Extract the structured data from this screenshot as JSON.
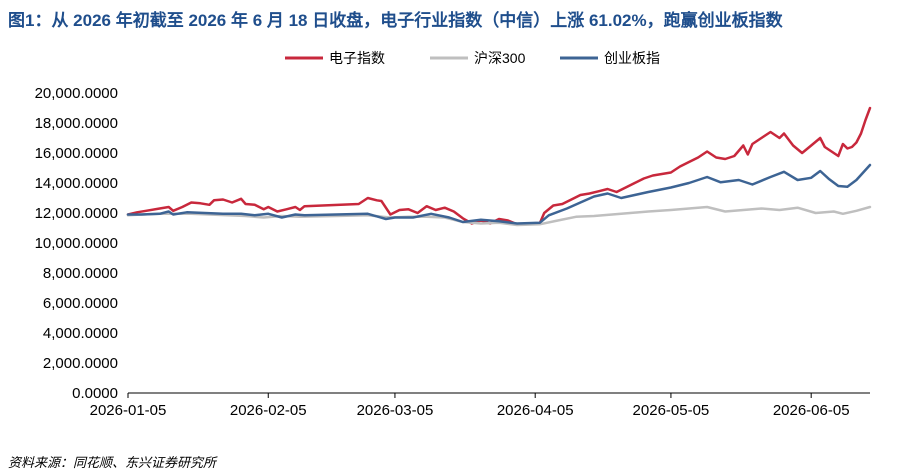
{
  "page": {
    "title": "图1：从 2026 年初截至 2026 年 6 月 18 日收盘，电子行业指数（中信）上涨 61.02%，跑赢创业板指数",
    "source": "资料来源：同花顺、东兴证券研究所"
  },
  "chart_data": {
    "type": "line",
    "title": "图1：从 2026 年初截至 2026 年 6 月 18 日收盘，电子行业指数（中信）上涨 61.02%，跑赢创业板指数",
    "xlabel": "",
    "ylabel": "",
    "ylim": [
      0,
      20000
    ],
    "y_ticks": [
      "0.0000",
      "2,000.0000",
      "4,000.0000",
      "6,000.0000",
      "8,000.0000",
      "10,000.0000",
      "12,000.0000",
      "14,000.0000",
      "16,000.0000",
      "18,000.0000",
      "20,000.0000"
    ],
    "x_range": [
      "2026-01-05",
      "2026-06-18"
    ],
    "x_ticks": [
      "2026-01-05",
      "2026-02-05",
      "2026-03-05",
      "2026-04-05",
      "2026-05-05",
      "2026-06-05"
    ],
    "legend_position": "top-center",
    "grid": false,
    "series": [
      {
        "name": "电子指数",
        "color": "#c8283c",
        "points": [
          [
            "2026-01-05",
            11900
          ],
          [
            "2026-01-07",
            12050
          ],
          [
            "2026-01-09",
            12150
          ],
          [
            "2026-01-12",
            12300
          ],
          [
            "2026-01-14",
            12400
          ],
          [
            "2026-01-15",
            12150
          ],
          [
            "2026-01-17",
            12400
          ],
          [
            "2026-01-19",
            12700
          ],
          [
            "2026-01-21",
            12650
          ],
          [
            "2026-01-23",
            12550
          ],
          [
            "2026-01-24",
            12850
          ],
          [
            "2026-01-26",
            12900
          ],
          [
            "2026-01-28",
            12700
          ],
          [
            "2026-01-30",
            12950
          ],
          [
            "2026-01-31",
            12600
          ],
          [
            "2026-02-02",
            12550
          ],
          [
            "2026-02-04",
            12250
          ],
          [
            "2026-02-05",
            12400
          ],
          [
            "2026-02-07",
            12100
          ],
          [
            "2026-02-09",
            12250
          ],
          [
            "2026-02-11",
            12400
          ],
          [
            "2026-02-12",
            12200
          ],
          [
            "2026-02-13",
            12450
          ],
          [
            "2026-02-25",
            12600
          ],
          [
            "2026-02-27",
            13000
          ],
          [
            "2026-03-01",
            12850
          ],
          [
            "2026-03-02",
            12800
          ],
          [
            "2026-03-04",
            11900
          ],
          [
            "2026-03-06",
            12200
          ],
          [
            "2026-03-08",
            12250
          ],
          [
            "2026-03-10",
            12000
          ],
          [
            "2026-03-12",
            12450
          ],
          [
            "2026-03-14",
            12200
          ],
          [
            "2026-03-16",
            12350
          ],
          [
            "2026-03-18",
            12100
          ],
          [
            "2026-03-20",
            11650
          ],
          [
            "2026-03-22",
            11300
          ],
          [
            "2026-03-24",
            11500
          ],
          [
            "2026-03-26",
            11300
          ],
          [
            "2026-03-28",
            11600
          ],
          [
            "2026-03-30",
            11500
          ],
          [
            "2026-04-01",
            11250
          ],
          [
            "2026-04-03",
            11300
          ],
          [
            "2026-04-06",
            11300
          ],
          [
            "2026-04-07",
            12000
          ],
          [
            "2026-04-09",
            12500
          ],
          [
            "2026-04-11",
            12600
          ],
          [
            "2026-04-13",
            12900
          ],
          [
            "2026-04-15",
            13200
          ],
          [
            "2026-04-17",
            13300
          ],
          [
            "2026-04-19",
            13450
          ],
          [
            "2026-04-21",
            13600
          ],
          [
            "2026-04-23",
            13400
          ],
          [
            "2026-04-25",
            13700
          ],
          [
            "2026-04-27",
            14000
          ],
          [
            "2026-04-29",
            14300
          ],
          [
            "2026-05-01",
            14500
          ],
          [
            "2026-05-05",
            14700
          ],
          [
            "2026-05-07",
            15100
          ],
          [
            "2026-05-09",
            15400
          ],
          [
            "2026-05-11",
            15700
          ],
          [
            "2026-05-13",
            16100
          ],
          [
            "2026-05-15",
            15700
          ],
          [
            "2026-05-17",
            15600
          ],
          [
            "2026-05-19",
            15800
          ],
          [
            "2026-05-21",
            16500
          ],
          [
            "2026-05-22",
            15900
          ],
          [
            "2026-05-23",
            16600
          ],
          [
            "2026-05-25",
            17000
          ],
          [
            "2026-05-27",
            17400
          ],
          [
            "2026-05-29",
            17000
          ],
          [
            "2026-05-30",
            17300
          ],
          [
            "2026-06-01",
            16500
          ],
          [
            "2026-06-03",
            16000
          ],
          [
            "2026-06-05",
            16500
          ],
          [
            "2026-06-07",
            17000
          ],
          [
            "2026-06-08",
            16400
          ],
          [
            "2026-06-10",
            16000
          ],
          [
            "2026-06-11",
            15800
          ],
          [
            "2026-06-12",
            16600
          ],
          [
            "2026-06-13",
            16300
          ],
          [
            "2026-06-14",
            16400
          ],
          [
            "2026-06-15",
            16700
          ],
          [
            "2026-06-16",
            17300
          ],
          [
            "2026-06-17",
            18200
          ],
          [
            "2026-06-18",
            19000
          ]
        ]
      },
      {
        "name": "沪深300",
        "color": "#bfbfbf",
        "points": [
          [
            "2026-01-05",
            11850
          ],
          [
            "2026-01-08",
            11900
          ],
          [
            "2026-01-12",
            11950
          ],
          [
            "2026-01-15",
            11950
          ],
          [
            "2026-01-19",
            11950
          ],
          [
            "2026-01-23",
            11900
          ],
          [
            "2026-01-27",
            11850
          ],
          [
            "2026-01-31",
            11800
          ],
          [
            "2026-02-04",
            11700
          ],
          [
            "2026-02-08",
            11800
          ],
          [
            "2026-02-12",
            11750
          ],
          [
            "2026-02-20",
            11800
          ],
          [
            "2026-02-27",
            11850
          ],
          [
            "2026-03-04",
            11700
          ],
          [
            "2026-03-08",
            11750
          ],
          [
            "2026-03-12",
            11750
          ],
          [
            "2026-03-16",
            11700
          ],
          [
            "2026-03-20",
            11400
          ],
          [
            "2026-03-24",
            11300
          ],
          [
            "2026-03-28",
            11350
          ],
          [
            "2026-04-01",
            11200
          ],
          [
            "2026-04-06",
            11250
          ],
          [
            "2026-04-10",
            11500
          ],
          [
            "2026-04-14",
            11750
          ],
          [
            "2026-04-18",
            11800
          ],
          [
            "2026-04-22",
            11900
          ],
          [
            "2026-04-26",
            12000
          ],
          [
            "2026-04-30",
            12100
          ],
          [
            "2026-05-05",
            12200
          ],
          [
            "2026-05-09",
            12300
          ],
          [
            "2026-05-13",
            12400
          ],
          [
            "2026-05-17",
            12100
          ],
          [
            "2026-05-21",
            12200
          ],
          [
            "2026-05-25",
            12300
          ],
          [
            "2026-05-29",
            12200
          ],
          [
            "2026-06-02",
            12350
          ],
          [
            "2026-06-06",
            12000
          ],
          [
            "2026-06-10",
            12100
          ],
          [
            "2026-06-12",
            11950
          ],
          [
            "2026-06-15",
            12150
          ],
          [
            "2026-06-18",
            12400
          ]
        ]
      },
      {
        "name": "创业板指",
        "color": "#3d6494",
        "points": [
          [
            "2026-01-05",
            11900
          ],
          [
            "2026-01-08",
            11900
          ],
          [
            "2026-01-12",
            11950
          ],
          [
            "2026-01-14",
            12100
          ],
          [
            "2026-01-15",
            11900
          ],
          [
            "2026-01-18",
            12050
          ],
          [
            "2026-01-22",
            12000
          ],
          [
            "2026-01-26",
            11950
          ],
          [
            "2026-01-30",
            11950
          ],
          [
            "2026-02-02",
            11850
          ],
          [
            "2026-02-05",
            11950
          ],
          [
            "2026-02-08",
            11700
          ],
          [
            "2026-02-11",
            11900
          ],
          [
            "2026-02-13",
            11850
          ],
          [
            "2026-02-20",
            11900
          ],
          [
            "2026-02-27",
            11950
          ],
          [
            "2026-03-03",
            11600
          ],
          [
            "2026-03-05",
            11700
          ],
          [
            "2026-03-09",
            11700
          ],
          [
            "2026-03-13",
            11950
          ],
          [
            "2026-03-17",
            11700
          ],
          [
            "2026-03-20",
            11400
          ],
          [
            "2026-03-24",
            11550
          ],
          [
            "2026-03-28",
            11450
          ],
          [
            "2026-04-01",
            11300
          ],
          [
            "2026-04-06",
            11350
          ],
          [
            "2026-04-08",
            11850
          ],
          [
            "2026-04-12",
            12300
          ],
          [
            "2026-04-15",
            12700
          ],
          [
            "2026-04-18",
            13100
          ],
          [
            "2026-04-21",
            13300
          ],
          [
            "2026-04-24",
            13000
          ],
          [
            "2026-04-27",
            13200
          ],
          [
            "2026-04-30",
            13400
          ],
          [
            "2026-05-05",
            13700
          ],
          [
            "2026-05-09",
            14000
          ],
          [
            "2026-05-13",
            14400
          ],
          [
            "2026-05-16",
            14050
          ],
          [
            "2026-05-20",
            14200
          ],
          [
            "2026-05-23",
            13900
          ],
          [
            "2026-05-27",
            14400
          ],
          [
            "2026-05-30",
            14750
          ],
          [
            "2026-06-02",
            14200
          ],
          [
            "2026-06-05",
            14350
          ],
          [
            "2026-06-07",
            14800
          ],
          [
            "2026-06-09",
            14250
          ],
          [
            "2026-06-11",
            13800
          ],
          [
            "2026-06-13",
            13750
          ],
          [
            "2026-06-15",
            14200
          ],
          [
            "2026-06-18",
            15200
          ]
        ]
      }
    ]
  }
}
